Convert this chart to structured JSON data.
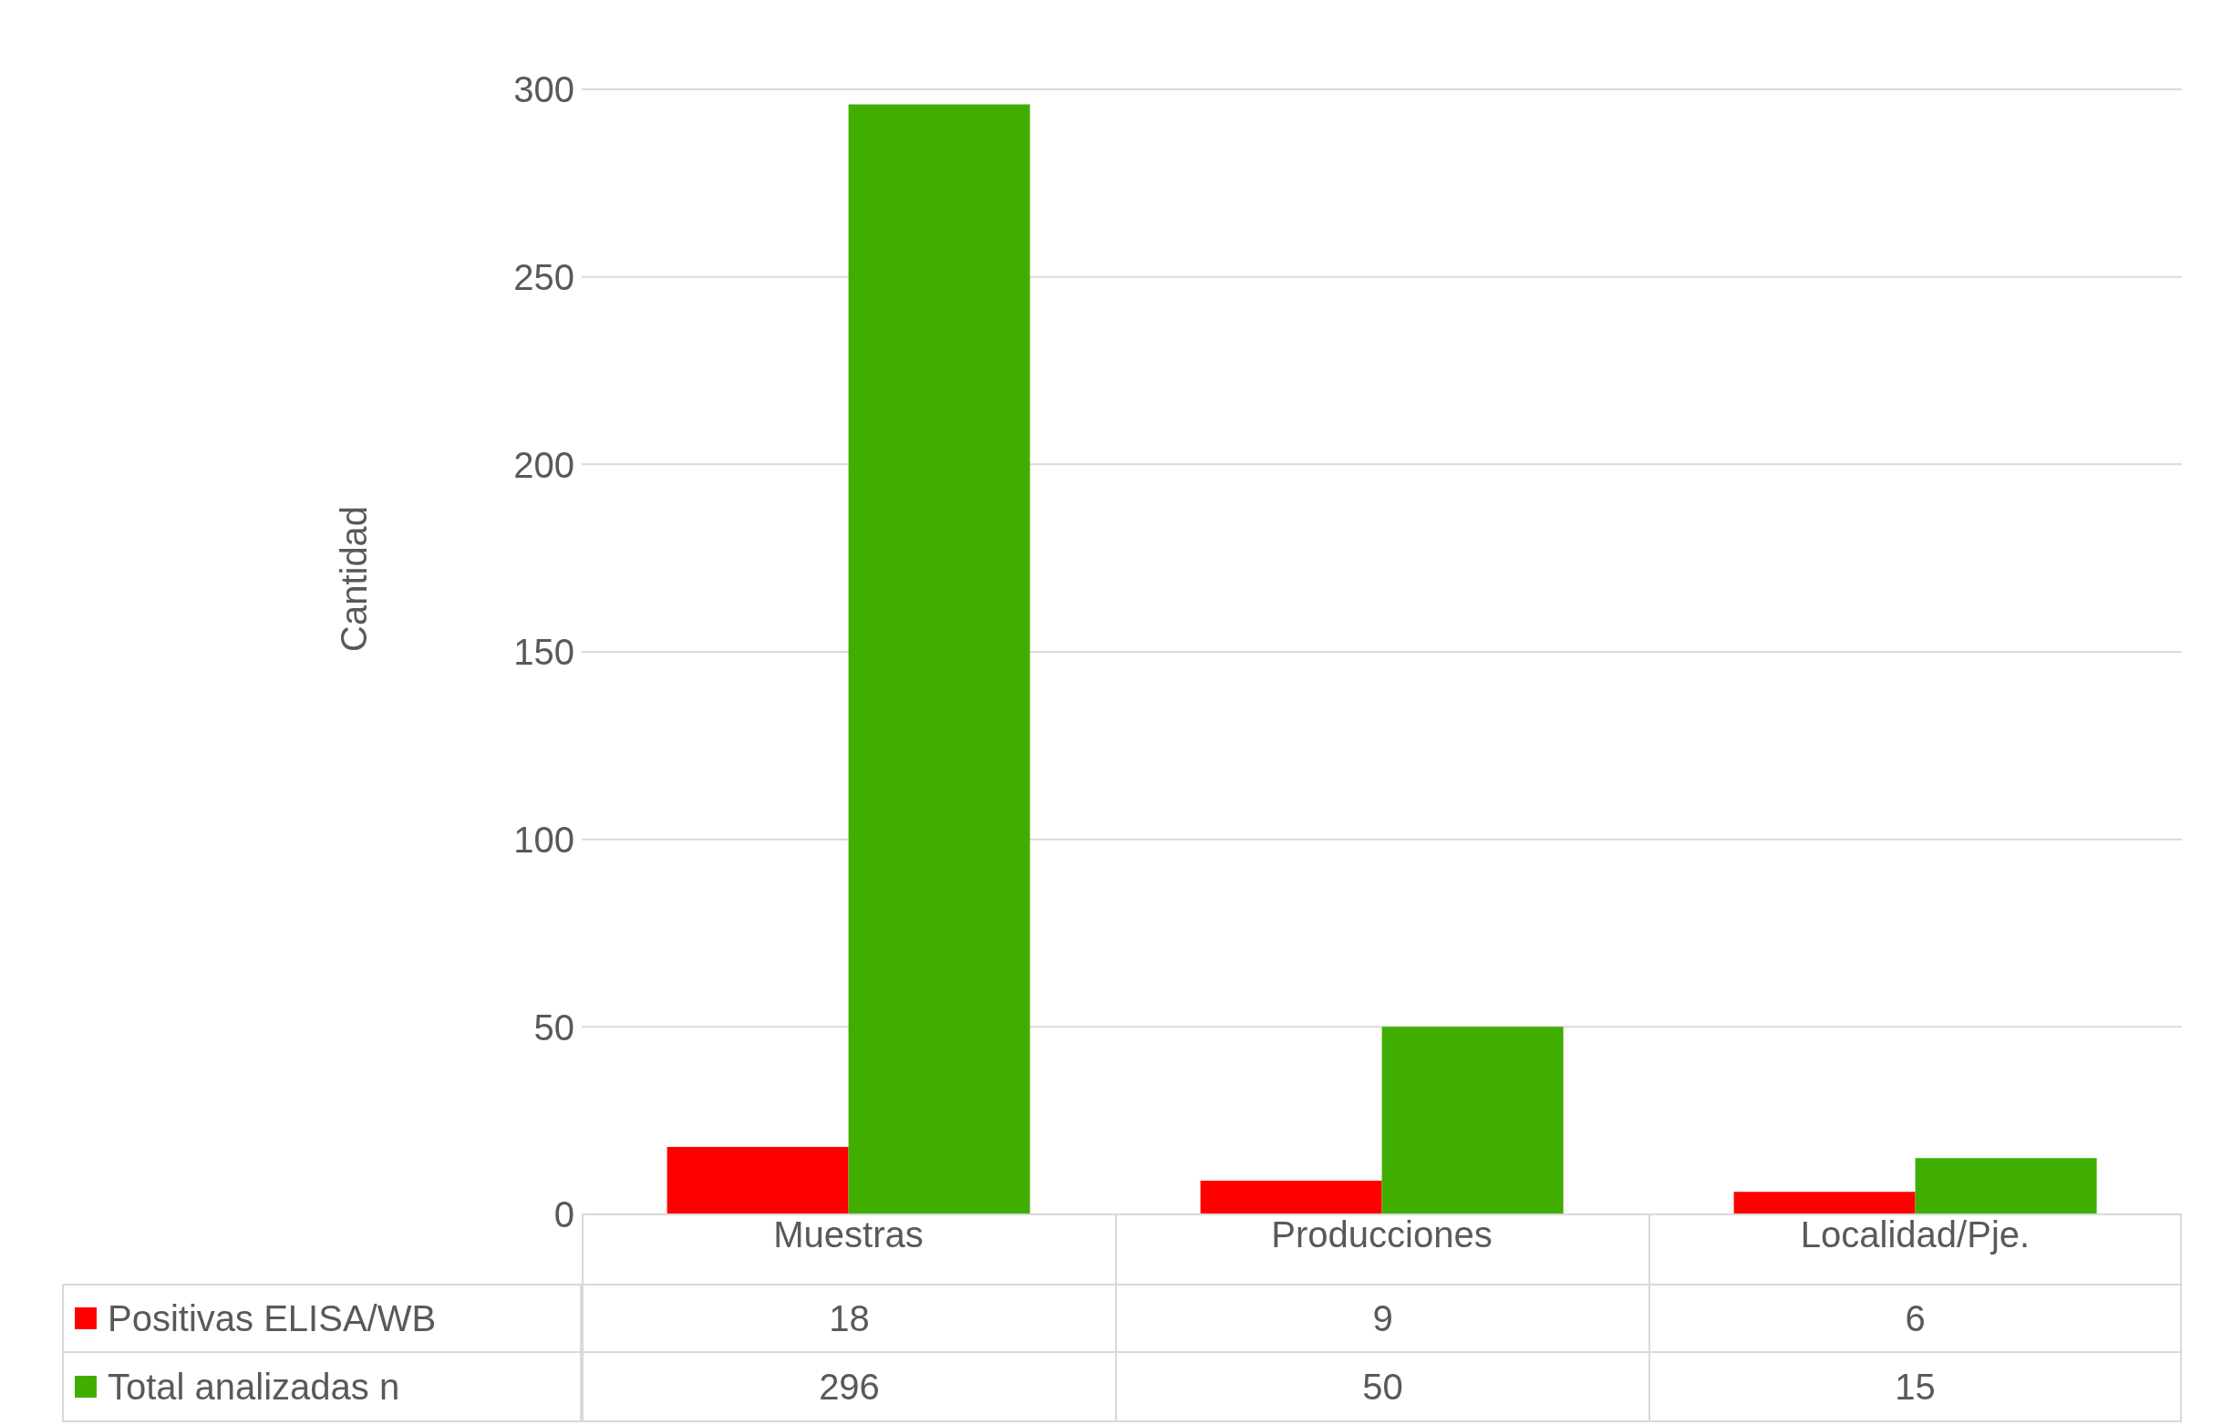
{
  "chart_data": {
    "type": "bar",
    "ylabel": "Cantidad",
    "categories": [
      "Muestras",
      "Producciones",
      "Localidad/Pje."
    ],
    "series": [
      {
        "name": "Positivas ELISA/WB",
        "color": "#ff0000",
        "values": [
          18,
          9,
          6
        ]
      },
      {
        "name": "Total analizadas n",
        "color": "#3fae00",
        "values": [
          296,
          50,
          15
        ]
      }
    ],
    "ylim": [
      0,
      300
    ],
    "yticks": [
      0,
      50,
      100,
      150,
      200,
      250,
      300
    ],
    "grid": "y",
    "legend": "bottom",
    "data_labels": true
  }
}
